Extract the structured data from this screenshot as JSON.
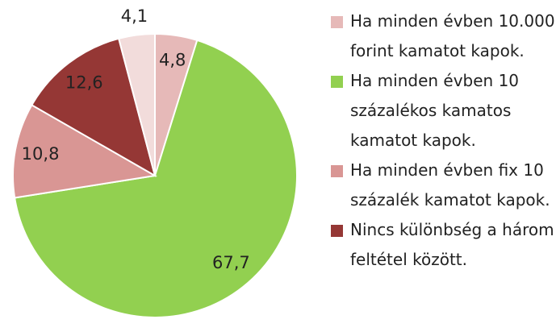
{
  "chart_data": {
    "type": "pie",
    "categories": [
      "Ha minden évben 10.000 forint kamatot kapok.",
      "Ha minden évben 10 százalékos kamatos kamatot kapok.",
      "Ha minden évben fix 10 százalék kamatot kapok.",
      "Nincs különbség a három feltétel között.",
      null
    ],
    "values": [
      4.8,
      67.7,
      10.8,
      12.6,
      4.1
    ],
    "value_labels": [
      "4,8",
      "67,7",
      "10,8",
      "12,6",
      "4,1"
    ],
    "colors": [
      "#e6b9b8",
      "#92d050",
      "#d99694",
      "#953735",
      "#f2dcdb"
    ]
  }
}
